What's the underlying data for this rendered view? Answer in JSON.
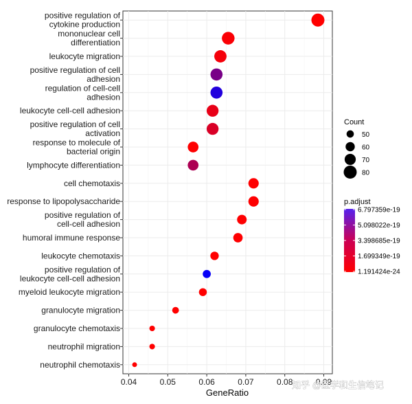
{
  "chart_data": {
    "type": "scatter",
    "subtype": "dotplot",
    "xlabel": "GeneRatio",
    "xlim": [
      0.0385,
      0.0922
    ],
    "xticks": [
      "0.04",
      "0.05",
      "0.06",
      "0.07",
      "0.08",
      "0.09"
    ],
    "grid": true,
    "legend_position": "right",
    "terms": [
      {
        "label": [
          "positive regulation of",
          "cytokine production"
        ],
        "gene_ratio": 0.0885,
        "count": 80,
        "p_adjust": 1.19e-24
      },
      {
        "label": [
          "mononuclear cell",
          "differentiation"
        ],
        "gene_ratio": 0.0655,
        "count": 78,
        "p_adjust": 1.4e-20
      },
      {
        "label": [
          "leukocyte migration"
        ],
        "gene_ratio": 0.0635,
        "count": 76,
        "p_adjust": 2.6e-20
      },
      {
        "label": [
          "positive regulation of cell",
          "adhesion"
        ],
        "gene_ratio": 0.0625,
        "count": 75,
        "p_adjust": 3.6e-19
      },
      {
        "label": [
          "regulation of cell-cell",
          "adhesion"
        ],
        "gene_ratio": 0.0625,
        "count": 75,
        "p_adjust": 5.9e-19
      },
      {
        "label": [
          "leukocyte cell-cell adhesion"
        ],
        "gene_ratio": 0.0615,
        "count": 74,
        "p_adjust": 6e-20
      },
      {
        "label": [
          "positive regulation of cell",
          "activation"
        ],
        "gene_ratio": 0.0615,
        "count": 74,
        "p_adjust": 1e-19
      },
      {
        "label": [
          "response to molecule of",
          "bacterial origin"
        ],
        "gene_ratio": 0.0565,
        "count": 68,
        "p_adjust": 3e-21
      },
      {
        "label": [
          "lymphocyte differentiation"
        ],
        "gene_ratio": 0.0565,
        "count": 68,
        "p_adjust": 2.2e-19
      },
      {
        "label": [
          "cell chemotaxis"
        ],
        "gene_ratio": 0.072,
        "count": 66,
        "p_adjust": 2e-21
      },
      {
        "label": [
          "response to lipopolysaccharide"
        ],
        "gene_ratio": 0.072,
        "count": 66,
        "p_adjust": 2e-21
      },
      {
        "label": [
          "positive regulation of",
          "cell-cell adhesion"
        ],
        "gene_ratio": 0.069,
        "count": 62,
        "p_adjust": 3e-21
      },
      {
        "label": [
          "humoral immune response"
        ],
        "gene_ratio": 0.068,
        "count": 61,
        "p_adjust": 2e-21
      },
      {
        "label": [
          "leukocyte chemotaxis"
        ],
        "gene_ratio": 0.062,
        "count": 56,
        "p_adjust": 1e-21
      },
      {
        "label": [
          "positive regulation of",
          "leukocyte cell-cell adhesion"
        ],
        "gene_ratio": 0.06,
        "count": 54,
        "p_adjust": 6.6e-19
      },
      {
        "label": [
          "myeloid leukocyte migration"
        ],
        "gene_ratio": 0.059,
        "count": 53,
        "p_adjust": 1e-21
      },
      {
        "label": [
          "granulocyte migration"
        ],
        "gene_ratio": 0.052,
        "count": 47,
        "p_adjust": 1e-21
      },
      {
        "label": [
          "granulocyte chemotaxis"
        ],
        "gene_ratio": 0.046,
        "count": 41,
        "p_adjust": 1e-21
      },
      {
        "label": [
          "neutrophil migration"
        ],
        "gene_ratio": 0.046,
        "count": 41,
        "p_adjust": 1e-21
      },
      {
        "label": [
          "neutrophil chemotaxis"
        ],
        "gene_ratio": 0.0415,
        "count": 37,
        "p_adjust": 1e-21
      }
    ],
    "size_legend": {
      "title": "Count",
      "values": [
        50,
        60,
        70,
        80
      ]
    },
    "color_legend": {
      "title": "p.adjust",
      "ticks": [
        "6.797359e-19",
        "5.098022e-19",
        "3.398685e-19",
        "1.699349e-19",
        "1.191424e-24"
      ],
      "tick_values": [
        6.797359e-19,
        5.098022e-19,
        3.398685e-19,
        1.699349e-19,
        1.191424e-24
      ],
      "low_color": "#ff0000",
      "high_color": "#0000ff"
    }
  },
  "watermark": "知乎 @医学和生信笔记"
}
